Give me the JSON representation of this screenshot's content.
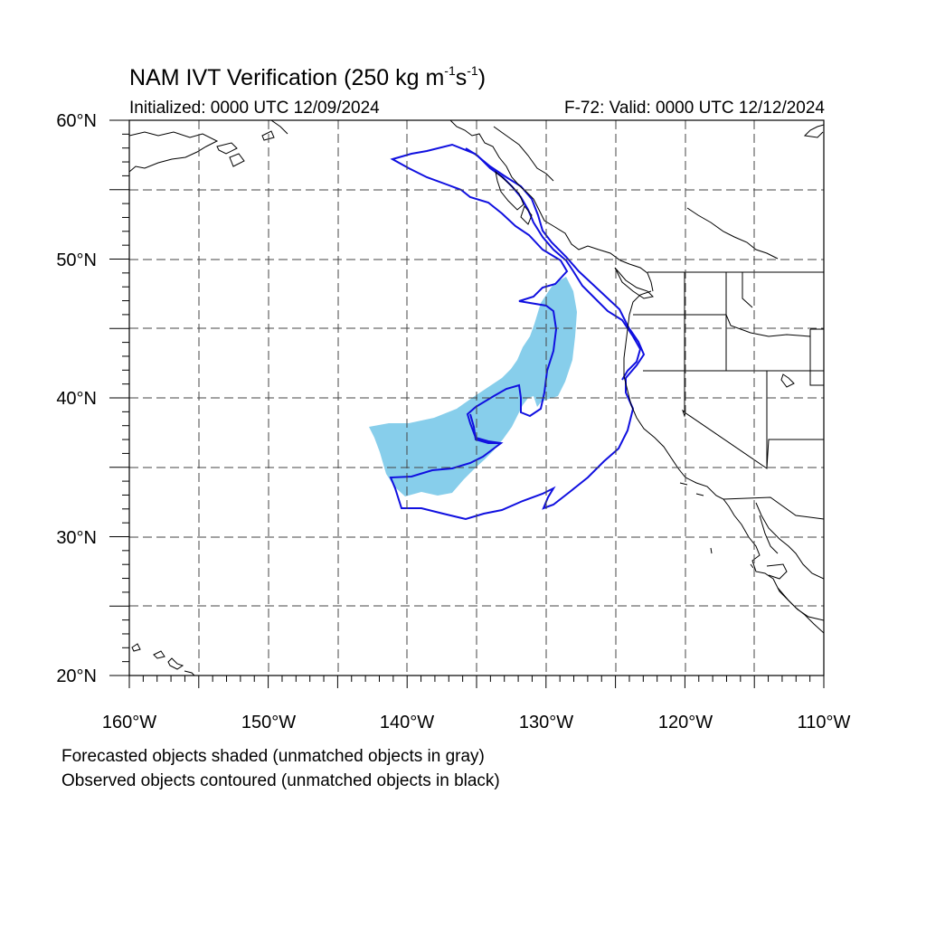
{
  "title": {
    "main": "NAM IVT Verification (250 kg m",
    "sup1": "-1",
    "mid": "s",
    "sup2": "-1",
    "end": ")"
  },
  "subtitle_left": "Initialized: 0000 UTC 12/09/2024",
  "subtitle_right": "F-72: Valid: 0000 UTC 12/12/2024",
  "lat_labels": [
    "60°N",
    "50°N",
    "40°N",
    "30°N",
    "20°N"
  ],
  "lon_labels": [
    "160°W",
    "150°W",
    "140°W",
    "130°W",
    "120°W",
    "110°W"
  ],
  "notes": [
    "Forecasted objects shaded (unmatched objects in gray)",
    "Observed objects contoured (unmatched objects in black)"
  ],
  "colors": {
    "forecast_fill": "#87ceeb",
    "observed_contour": "#1010e0",
    "coastline": "#000000",
    "grid": "#000000"
  },
  "map": {
    "lon_range": [
      -160,
      -110
    ],
    "lat_range": [
      20,
      60
    ],
    "grid_lon_step": 5,
    "grid_lat_step": 5,
    "grid_style": "dashed"
  }
}
